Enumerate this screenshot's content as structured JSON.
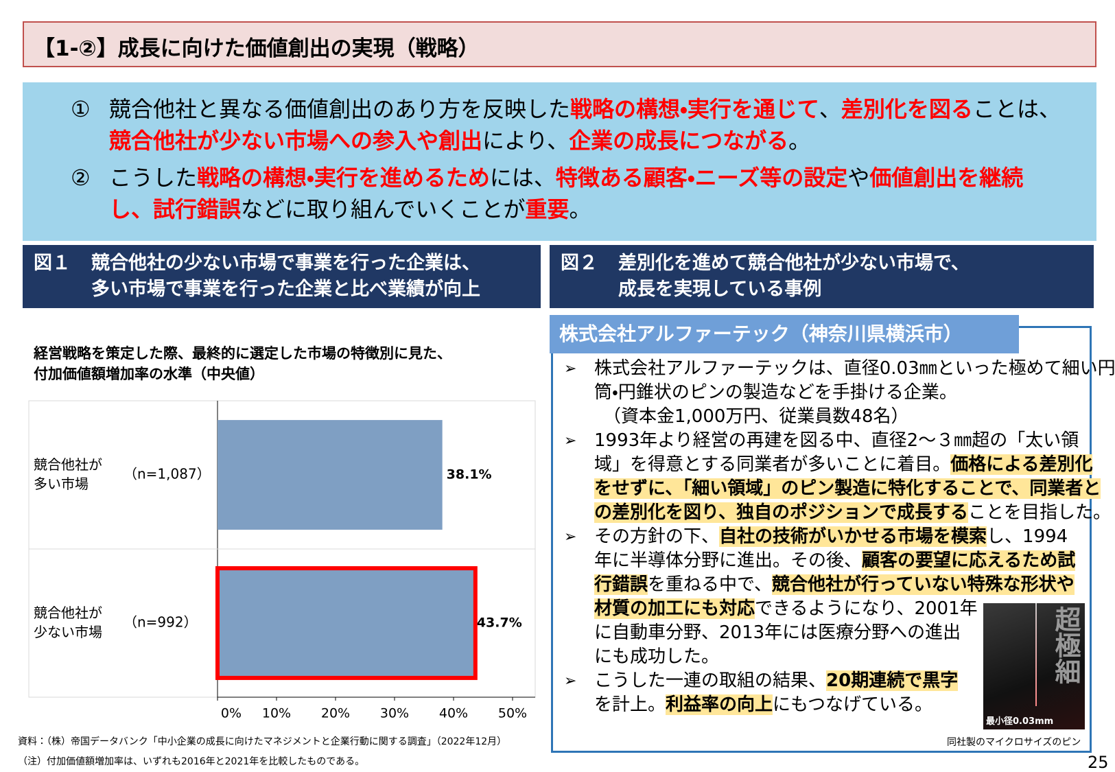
{
  "header": {
    "title": "【1-②】成長に向けた価値創出の実現（戦略）"
  },
  "summary": {
    "items": [
      {
        "marker": "①",
        "lines": [
          [
            {
              "text": "競合他社と異なる価値創出のあり方を反映した"
            },
            {
              "text": "戦略の構想・実行を通じて",
              "emphasis": true
            },
            {
              "text": "、"
            },
            {
              "text": "差別化を図る",
              "emphasis": true
            },
            {
              "text": "ことは、"
            }
          ],
          [
            {
              "text": "競合他社が少ない市場への参入や創出",
              "emphasis": true
            },
            {
              "text": "により、"
            },
            {
              "text": "企業の成長につながる",
              "emphasis": true
            },
            {
              "text": "。"
            }
          ]
        ]
      },
      {
        "marker": "②",
        "lines": [
          [
            {
              "text": "こうした"
            },
            {
              "text": "戦略の構想・実行を進めるため",
              "emphasis": true
            },
            {
              "text": "には、"
            },
            {
              "text": "特徴ある顧客・ニーズ等の設定",
              "emphasis": true
            },
            {
              "text": "や"
            },
            {
              "text": "価値創出を継続",
              "emphasis": true
            }
          ],
          [
            {
              "text": "し、試行錯誤",
              "emphasis": true
            },
            {
              "text": "などに取り組んでいくことが"
            },
            {
              "text": "重要",
              "emphasis": true
            },
            {
              "text": "。"
            }
          ]
        ]
      }
    ]
  },
  "figure1": {
    "label": "図１",
    "title_lines": [
      "競合他社の少ない市場で事業を行った企業は、",
      "多い市場で事業を行った企業と比べ業績が向上"
    ]
  },
  "chart_data": {
    "type": "bar",
    "orientation": "horizontal",
    "title_lines": [
      "経営戦略を策定した際、最終的に選定した市場の特徴別に見た、",
      "付加価値額増加率の水準（中央値）"
    ],
    "categories": [
      "競合他社が\n多い市場",
      "競合他社が\n少ない市場"
    ],
    "sample_sizes": [
      "（n=1,087）",
      "（n=992）"
    ],
    "values": [
      38.1,
      43.7
    ],
    "value_labels": [
      "38.1%",
      "43.7%"
    ],
    "color": "#7f9fc3",
    "highlight_index": 1,
    "highlight_color": "#ff0000",
    "xlim": [
      0,
      50
    ],
    "xticks": [
      {
        "value": 0,
        "label": "0%"
      },
      {
        "value": 10,
        "label": "10%"
      },
      {
        "value": 20,
        "label": "20%"
      },
      {
        "value": 30,
        "label": "30%"
      },
      {
        "value": 40,
        "label": "40%"
      },
      {
        "value": 50,
        "label": "50%"
      }
    ]
  },
  "source": "資料：（株）帝国データバンク「中小企業の成長に向けたマネジメントと企業行動に関する調査」（2022年12月）",
  "note": "（注）付加価値額増加率は、いずれも2016年と2021年を比較したものである。",
  "figure2": {
    "label": "図２",
    "title_lines": [
      "差別化を進めて競合他社が少ない市場で、",
      "成長を実現している事例"
    ],
    "company": "株式会社アルファーテック（神奈川県横浜市）",
    "bullets": [
      {
        "lines": [
          [
            {
              "text": "株式会社アルファーテックは、直径0.03㎜といった極めて細い円"
            }
          ],
          [
            {
              "text": "筒・円錐状のピンの製造などを手掛ける企業。"
            }
          ],
          [
            {
              "text": "（資本金1,000万円、従業員数48名）"
            }
          ]
        ]
      },
      {
        "lines": [
          [
            {
              "text": "1993年より経営の再建を図る中、直径2～３㎜超の「太い領"
            }
          ],
          [
            {
              "text": "域」を得意とする同業者が多いことに着目。"
            },
            {
              "text": "価格による差別化",
              "highlight": true
            }
          ],
          [
            {
              "text": "をせずに、「細い領域」のピン製造に特化することで、同業者と",
              "highlight": true
            }
          ],
          [
            {
              "text": "の差別化を図り、独自のポジションで成長する",
              "highlight": true
            },
            {
              "text": "ことを目指した。"
            }
          ]
        ]
      },
      {
        "lines": [
          [
            {
              "text": "その方針の下、"
            },
            {
              "text": "自社の技術がいかせる市場を模索",
              "highlight": true
            },
            {
              "text": "し、1994"
            }
          ],
          [
            {
              "text": "年に半導体分野に進出。その後、"
            },
            {
              "text": "顧客の要望に応えるため試",
              "highlight": true
            }
          ],
          [
            {
              "text": "行錯誤",
              "highlight": true
            },
            {
              "text": "を重ねる中で、"
            },
            {
              "text": "競合他社が行っていない特殊な形状や",
              "highlight": true
            }
          ],
          [
            {
              "text": "材質の加工にも対応",
              "highlight": true
            },
            {
              "text": "できるようになり、2001年"
            }
          ],
          [
            {
              "text": "に自動車分野、2013年には医療分野への進出"
            }
          ],
          [
            {
              "text": "にも成功した。"
            }
          ]
        ]
      },
      {
        "lines": [
          [
            {
              "text": "こうした一連の取組の結果、"
            },
            {
              "text": "20期連続で黒字",
              "highlight": true
            }
          ],
          [
            {
              "text": "を計上。"
            },
            {
              "text": "利益率の向上",
              "highlight": true
            },
            {
              "text": "にもつなげている。"
            }
          ]
        ]
      }
    ],
    "image_text": "超極細",
    "image_label": "最小径0.03mm",
    "image_caption": "同社製のマイクロサイズのピン"
  },
  "page_number": "25"
}
